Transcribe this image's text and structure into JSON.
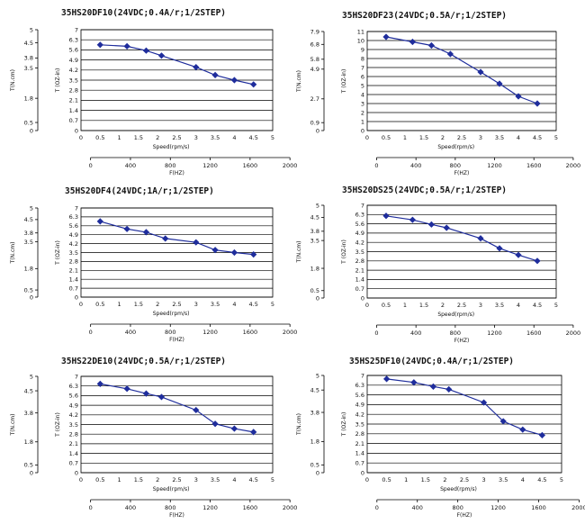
{
  "chart_data": [
    {
      "type": "line",
      "title": "35HS20DF10(24VDC;0.4A/r;1/2STEP)",
      "xlabel": "Speed(rpm/s)",
      "x2label": "F(HZ)",
      "ylabel_left": "T(N.cm)",
      "ylabel_right": "T (OZ-in)",
      "xlim": [
        0,
        5
      ],
      "x_ticks": [
        "0",
        "0.5",
        "1",
        "1.5",
        "2",
        "2.5",
        "3",
        "3.5",
        "4",
        "4.5",
        "5"
      ],
      "x2_ticks": [
        "0",
        "400",
        "800",
        "1200",
        "1600",
        "2000"
      ],
      "ylim": [
        0,
        7
      ],
      "y_ticks": [
        "0",
        "0.7",
        "1.4",
        "2.1",
        "2.8",
        "3.5",
        "4.2",
        "4.9",
        "5.6",
        "6.3",
        "7"
      ],
      "y_left_ticks": [
        "0",
        "0.5",
        "1.8",
        "3.5",
        "3.8",
        "4.5",
        "5"
      ],
      "series": [
        {
          "x": [
            0.5,
            1.2,
            1.7,
            2.1,
            3.0,
            3.5,
            4.0,
            4.5
          ],
          "y": [
            5.95,
            5.85,
            5.55,
            5.2,
            4.4,
            3.85,
            3.5,
            3.2
          ]
        }
      ]
    },
    {
      "type": "line",
      "title": "35HS20DF23(24VDC;0.5A/r;1/2STEP)",
      "xlabel": "Speed(rpm/s)",
      "x2label": "F(HZ)",
      "ylabel_left": "T(N.cm)",
      "ylabel_right": "T (OZ-in)",
      "xlim": [
        0,
        5
      ],
      "x_ticks": [
        "0",
        "0.5",
        "1",
        "1.5",
        "2",
        "2.5",
        "3",
        "3.5",
        "4",
        "4.5",
        "5"
      ],
      "x2_ticks": [
        "0",
        "400",
        "800",
        "1200",
        "1600",
        "2000"
      ],
      "ylim": [
        0,
        11
      ],
      "y_ticks": [
        "0",
        "1",
        "2",
        "3",
        "4",
        "5",
        "6",
        "7",
        "8",
        "9",
        "10",
        "11"
      ],
      "y_left_ticks": [
        "0",
        "0.9",
        "2.7",
        "4.9",
        "5.8",
        "6.8",
        "7.9"
      ],
      "series": [
        {
          "x": [
            0.5,
            1.2,
            1.7,
            2.2,
            3.0,
            3.5,
            4.0,
            4.5
          ],
          "y": [
            10.4,
            9.85,
            9.45,
            8.5,
            6.5,
            5.2,
            3.8,
            3.0
          ]
        }
      ]
    },
    {
      "type": "line",
      "title": "35HS20DF4(24VDC;1A/r;1/2STEP)",
      "xlabel": "Speed(rpm/s)",
      "x2label": "F(HZ)",
      "ylabel_left": "T(N.cm)",
      "ylabel_right": "T (OZ-in)",
      "xlim": [
        0,
        5
      ],
      "x_ticks": [
        "0",
        "0.5",
        "1",
        "1.5",
        "2",
        "2.5",
        "3",
        "3.5",
        "4",
        "4.5",
        "5"
      ],
      "x2_ticks": [
        "0",
        "400",
        "800",
        "1200",
        "1600",
        "2000"
      ],
      "ylim": [
        0,
        7
      ],
      "y_ticks": [
        "0",
        "0.7",
        "1.4",
        "2.1",
        "2.8",
        "3.5",
        "4.2",
        "4.9",
        "5.6",
        "6.3",
        "7"
      ],
      "y_left_ticks": [
        "0",
        "0.5",
        "1.8",
        "3.5",
        "3.8",
        "4.5",
        "5"
      ],
      "series": [
        {
          "x": [
            0.5,
            1.2,
            1.7,
            2.2,
            3.0,
            3.5,
            4.0,
            4.5
          ],
          "y": [
            5.95,
            5.35,
            5.1,
            4.6,
            4.3,
            3.7,
            3.5,
            3.35
          ]
        }
      ]
    },
    {
      "type": "line",
      "title": "35HS20DS25(24VDC;0.5A/r;1/2STEP)",
      "xlabel": "Speed(rpm/s)",
      "x2label": "F(HZ)",
      "ylabel_left": "T(N.cm)",
      "ylabel_right": "T (OZ-in)",
      "xlim": [
        0,
        5
      ],
      "x_ticks": [
        "0",
        "0.5",
        "1",
        "1.5",
        "2",
        "2.5",
        "3",
        "3.5",
        "4",
        "4.5",
        "5"
      ],
      "x2_ticks": [
        "0",
        "400",
        "800",
        "1200",
        "1600",
        "2000"
      ],
      "ylim": [
        0,
        7
      ],
      "y_ticks": [
        "0",
        "0.7",
        "1.4",
        "2.1",
        "2.8",
        "3.5",
        "4.2",
        "4.9",
        "5.6",
        "6.3",
        "7"
      ],
      "y_left_ticks": [
        "0",
        "0.5",
        "1.8",
        "3.5",
        "3.8",
        "4.5",
        "5"
      ],
      "series": [
        {
          "x": [
            0.5,
            1.2,
            1.7,
            2.1,
            3.0,
            3.5,
            4.0,
            4.5
          ],
          "y": [
            6.2,
            5.9,
            5.55,
            5.3,
            4.5,
            3.75,
            3.25,
            2.8
          ]
        }
      ]
    },
    {
      "type": "line",
      "title": "35HS22DE10(24VDC;0.5A/r;1/2STEP)",
      "xlabel": "Speed(rpm/s)",
      "x2label": "F(HZ)",
      "ylabel_left": "T(N.cm)",
      "ylabel_right": "T (OZ-in)",
      "xlim": [
        0,
        5
      ],
      "x_ticks": [
        "0",
        "0.5",
        "1",
        "1.5",
        "2",
        "2.5",
        "3",
        "3.5",
        "4",
        "4.5",
        "5"
      ],
      "x2_ticks": [
        "0",
        "400",
        "800",
        "1200",
        "1600",
        "2000"
      ],
      "ylim": [
        0,
        7
      ],
      "y_ticks": [
        "0",
        "0.7",
        "1.4",
        "2.1",
        "2.8",
        "3.5",
        "4.2",
        "4.9",
        "5.6",
        "6.3",
        "7"
      ],
      "y_left_ticks": [
        "0",
        "0.5",
        "1.8",
        "3.8",
        "4.5",
        "5"
      ],
      "series": [
        {
          "x": [
            0.5,
            1.2,
            1.7,
            2.1,
            3.0,
            3.5,
            4.0,
            4.5
          ],
          "y": [
            6.45,
            6.1,
            5.75,
            5.5,
            4.55,
            3.55,
            3.2,
            2.95
          ]
        }
      ]
    },
    {
      "type": "line",
      "title": "35HS25DF10(24VDC;0.4A/r;1/2STEP)",
      "xlabel": "Speed(rpm/s)",
      "x2label": "F(HZ)",
      "ylabel_left": "T(N.cm)",
      "ylabel_right": "T (OZ-in)",
      "xlim": [
        0,
        5
      ],
      "x_ticks": [
        "0",
        "0.5",
        "1",
        "1.5",
        "2",
        "2.5",
        "3",
        "3.5",
        "4",
        "4.5",
        "5"
      ],
      "x2_ticks": [
        "0",
        "400",
        "800",
        "1200",
        "1600",
        "2000"
      ],
      "ylim": [
        0,
        7
      ],
      "y_ticks": [
        "0",
        "0.7",
        "1.4",
        "2.1",
        "2.8",
        "3.5",
        "4.2",
        "4.9",
        "5.6",
        "6.3",
        "7"
      ],
      "y_left_ticks": [
        "0",
        "0.5",
        "1.8",
        "3.8",
        "4.5",
        "5"
      ],
      "series": [
        {
          "x": [
            0.5,
            1.2,
            1.7,
            2.1,
            3.0,
            3.5,
            4.0,
            4.5
          ],
          "y": [
            6.75,
            6.5,
            6.2,
            6.0,
            5.05,
            3.7,
            3.1,
            2.7
          ]
        }
      ]
    }
  ]
}
